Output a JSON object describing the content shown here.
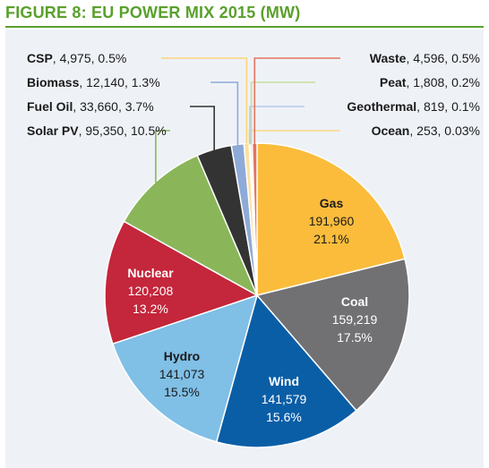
{
  "figure": {
    "title": "FIGURE 8: EU POWER MIX 2015 (MW)"
  },
  "chart_data": {
    "type": "pie",
    "title": "FIGURE 8: EU POWER MIX 2015 (MW)",
    "slices": [
      {
        "name": "Gas",
        "value": 191960,
        "value_label": "191,960",
        "percent_label": "21.1%",
        "color": "#fbbc3c",
        "label_color": "#1a1a1a",
        "label_mode": "inside"
      },
      {
        "name": "Coal",
        "value": 159219,
        "value_label": "159,219",
        "percent_label": "17.5%",
        "color": "#717174",
        "label_color": "#ffffff",
        "label_mode": "inside"
      },
      {
        "name": "Wind",
        "value": 141579,
        "value_label": "141,579",
        "percent_label": "15.6%",
        "color": "#0a5ea6",
        "label_color": "#ffffff",
        "label_mode": "inside"
      },
      {
        "name": "Hydro",
        "value": 141073,
        "value_label": "141,073",
        "percent_label": "15.5%",
        "color": "#80bfe6",
        "label_color": "#1a1a1a",
        "label_mode": "inside"
      },
      {
        "name": "Nuclear",
        "value": 120208,
        "value_label": "120,208",
        "percent_label": "13.2%",
        "color": "#c4263b",
        "label_color": "#ffffff",
        "label_mode": "inside"
      },
      {
        "name": "Solar PV",
        "value": 95350,
        "value_label": "95,350",
        "percent_label": "10.5%",
        "color": "#8ab659",
        "label_color": "#1a1a1a",
        "label_mode": "outside"
      },
      {
        "name": "Fuel Oil",
        "value": 33660,
        "value_label": "33,660",
        "percent_label": "3.7%",
        "color": "#333333",
        "label_color": "#1a1a1a",
        "label_mode": "outside"
      },
      {
        "name": "Biomass",
        "value": 12140,
        "value_label": "12,140",
        "percent_label": "1.3%",
        "color": "#8eaad8",
        "label_color": "#1a1a1a",
        "label_mode": "outside"
      },
      {
        "name": "CSP",
        "value": 4975,
        "value_label": "4,975",
        "percent_label": "0.5%",
        "color": "#fde0a0",
        "label_color": "#1a1a1a",
        "label_mode": "outside"
      },
      {
        "name": "Ocean",
        "value": 253,
        "value_label": "253",
        "percent_label": "0.03%",
        "color": "#fdd88a",
        "label_color": "#1a1a1a",
        "label_mode": "outside"
      },
      {
        "name": "Geothermal",
        "value": 819,
        "value_label": "819",
        "percent_label": "0.1%",
        "color": "#b8c8e8",
        "label_color": "#1a1a1a",
        "label_mode": "outside"
      },
      {
        "name": "Peat",
        "value": 1808,
        "value_label": "1,808",
        "percent_label": "0.2%",
        "color": "#c9dc9e",
        "label_color": "#1a1a1a",
        "label_mode": "outside"
      },
      {
        "name": "Waste",
        "value": 4596,
        "value_label": "4,596",
        "percent_label": "0.5%",
        "color": "#e3745f",
        "label_color": "#1a1a1a",
        "label_mode": "outside"
      }
    ],
    "legend": "none"
  }
}
